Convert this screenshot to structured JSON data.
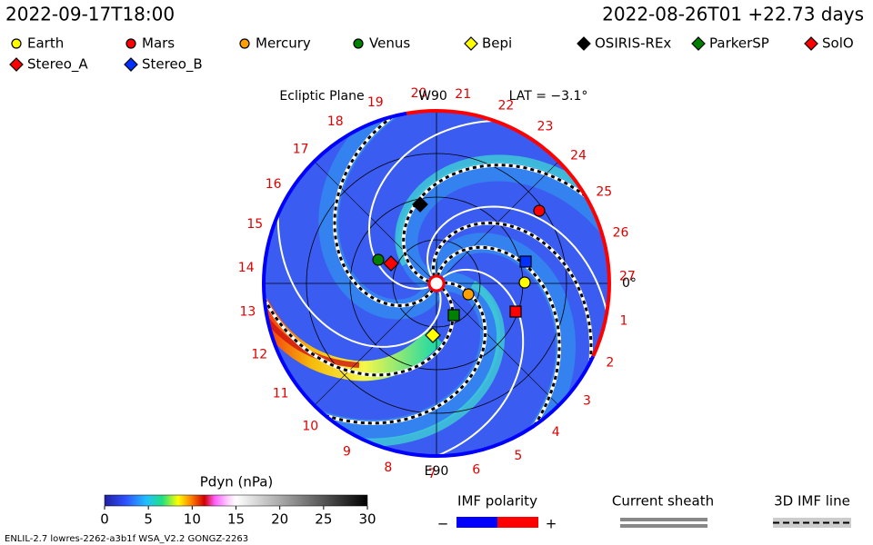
{
  "header": {
    "time_left": "2022-09-17T18:00",
    "time_right": "2022-08-26T01 +22.73 days"
  },
  "legend": [
    "Earth",
    "Mars",
    "Mercury",
    "Venus",
    "Bepi",
    "OSIRIS-REx",
    "ParkerSP",
    "SolO",
    "Stereo_A",
    "Stereo_B"
  ],
  "plot": {
    "title": "Ecliptic Plane",
    "w_label": "W90",
    "e_label": "E90",
    "lat_label": "LAT = −3.1°",
    "zero_label": "0°",
    "carrington": [
      "1",
      "2",
      "3",
      "4",
      "5",
      "6",
      "7",
      "8",
      "9",
      "10",
      "11",
      "12",
      "13",
      "14",
      "15",
      "16",
      "17",
      "18",
      "19",
      "20",
      "21",
      "22",
      "23",
      "24",
      "25",
      "26",
      "27"
    ]
  },
  "colorbar": {
    "title": "Pdyn (nPa)",
    "range": [
      0,
      30
    ],
    "ticks": [
      0,
      5,
      10,
      15,
      20,
      25,
      30
    ]
  },
  "imf": {
    "title": "IMF polarity",
    "minus": "−",
    "plus": "+"
  },
  "sheath": "Current sheath",
  "imf_line": "3D IMF line",
  "footer": "ENLIL-2.7 lowres-2262-a3b1f WSA_V2.2 GONGZ-2263"
}
